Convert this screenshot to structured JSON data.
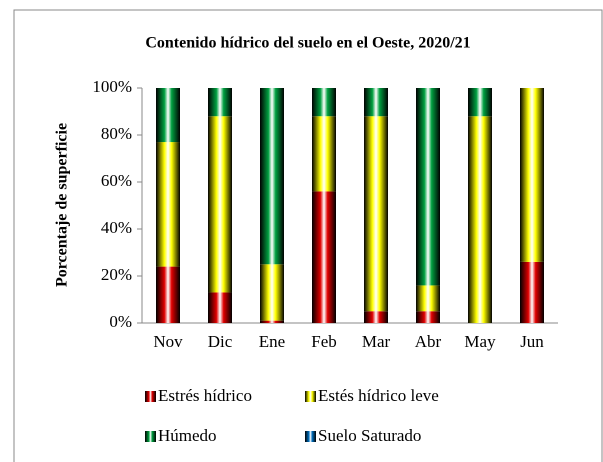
{
  "chart_data": {
    "type": "stacked_bar",
    "title": "Contenido hídrico del suelo en el Oeste, 2020/21",
    "y_label": "Porcentaje de superficie",
    "categories": [
      "Nov",
      "Dic",
      "Ene",
      "Feb",
      "Mar",
      "Abr",
      "May",
      "Jun"
    ],
    "series": [
      {
        "name": "Estrés hídrico",
        "color": "#e00000",
        "values": [
          24,
          13,
          1,
          56,
          5,
          5,
          0,
          26
        ]
      },
      {
        "name": "Estés hídrico leve",
        "color": "#ffff00",
        "values": [
          53,
          75,
          24,
          32,
          83,
          11,
          88,
          74
        ]
      },
      {
        "name": "Húmedo",
        "color": "#00a040",
        "values": [
          23,
          12,
          75,
          12,
          12,
          84,
          12,
          0
        ]
      },
      {
        "name": "Suelo Saturado",
        "color": "#0070c0",
        "values": [
          0,
          0,
          0,
          0,
          0,
          0,
          0,
          0
        ]
      }
    ],
    "ylim": [
      0,
      100
    ],
    "yticks": [
      {
        "value": 0,
        "label": "0%"
      },
      {
        "value": 20,
        "label": "20%"
      },
      {
        "value": 40,
        "label": "40%"
      },
      {
        "value": 60,
        "label": "60%"
      },
      {
        "value": 80,
        "label": "80%"
      },
      {
        "value": 100,
        "label": "100%"
      }
    ],
    "grid": false
  }
}
